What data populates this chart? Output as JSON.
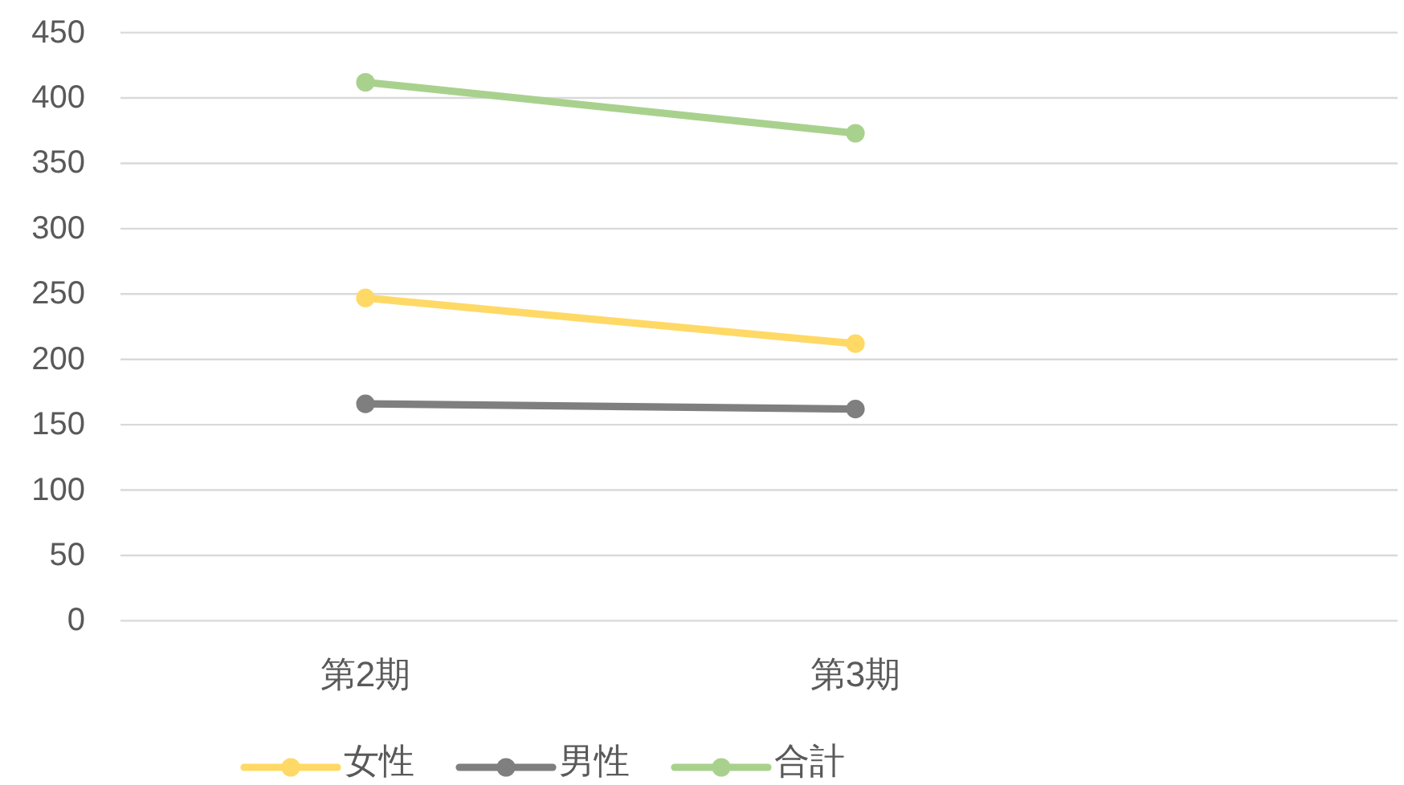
{
  "chart_data": {
    "type": "line",
    "categories": [
      "第2期",
      "第3期",
      null
    ],
    "series": [
      {
        "name": "女性",
        "color": "#ffd966",
        "values": [
          247,
          212,
          null
        ]
      },
      {
        "name": "男性",
        "color": "#7f7f7f",
        "values": [
          166,
          162,
          null
        ]
      },
      {
        "name": "合計",
        "color": "#a9d18e",
        "values": [
          412,
          373,
          null
        ]
      }
    ],
    "ylim": [
      0,
      450
    ],
    "yticks": [
      0,
      50,
      100,
      150,
      200,
      250,
      300,
      350,
      400,
      450
    ],
    "grid": "y",
    "legend": "bottom",
    "marker": "circle",
    "line_style": "solid"
  }
}
